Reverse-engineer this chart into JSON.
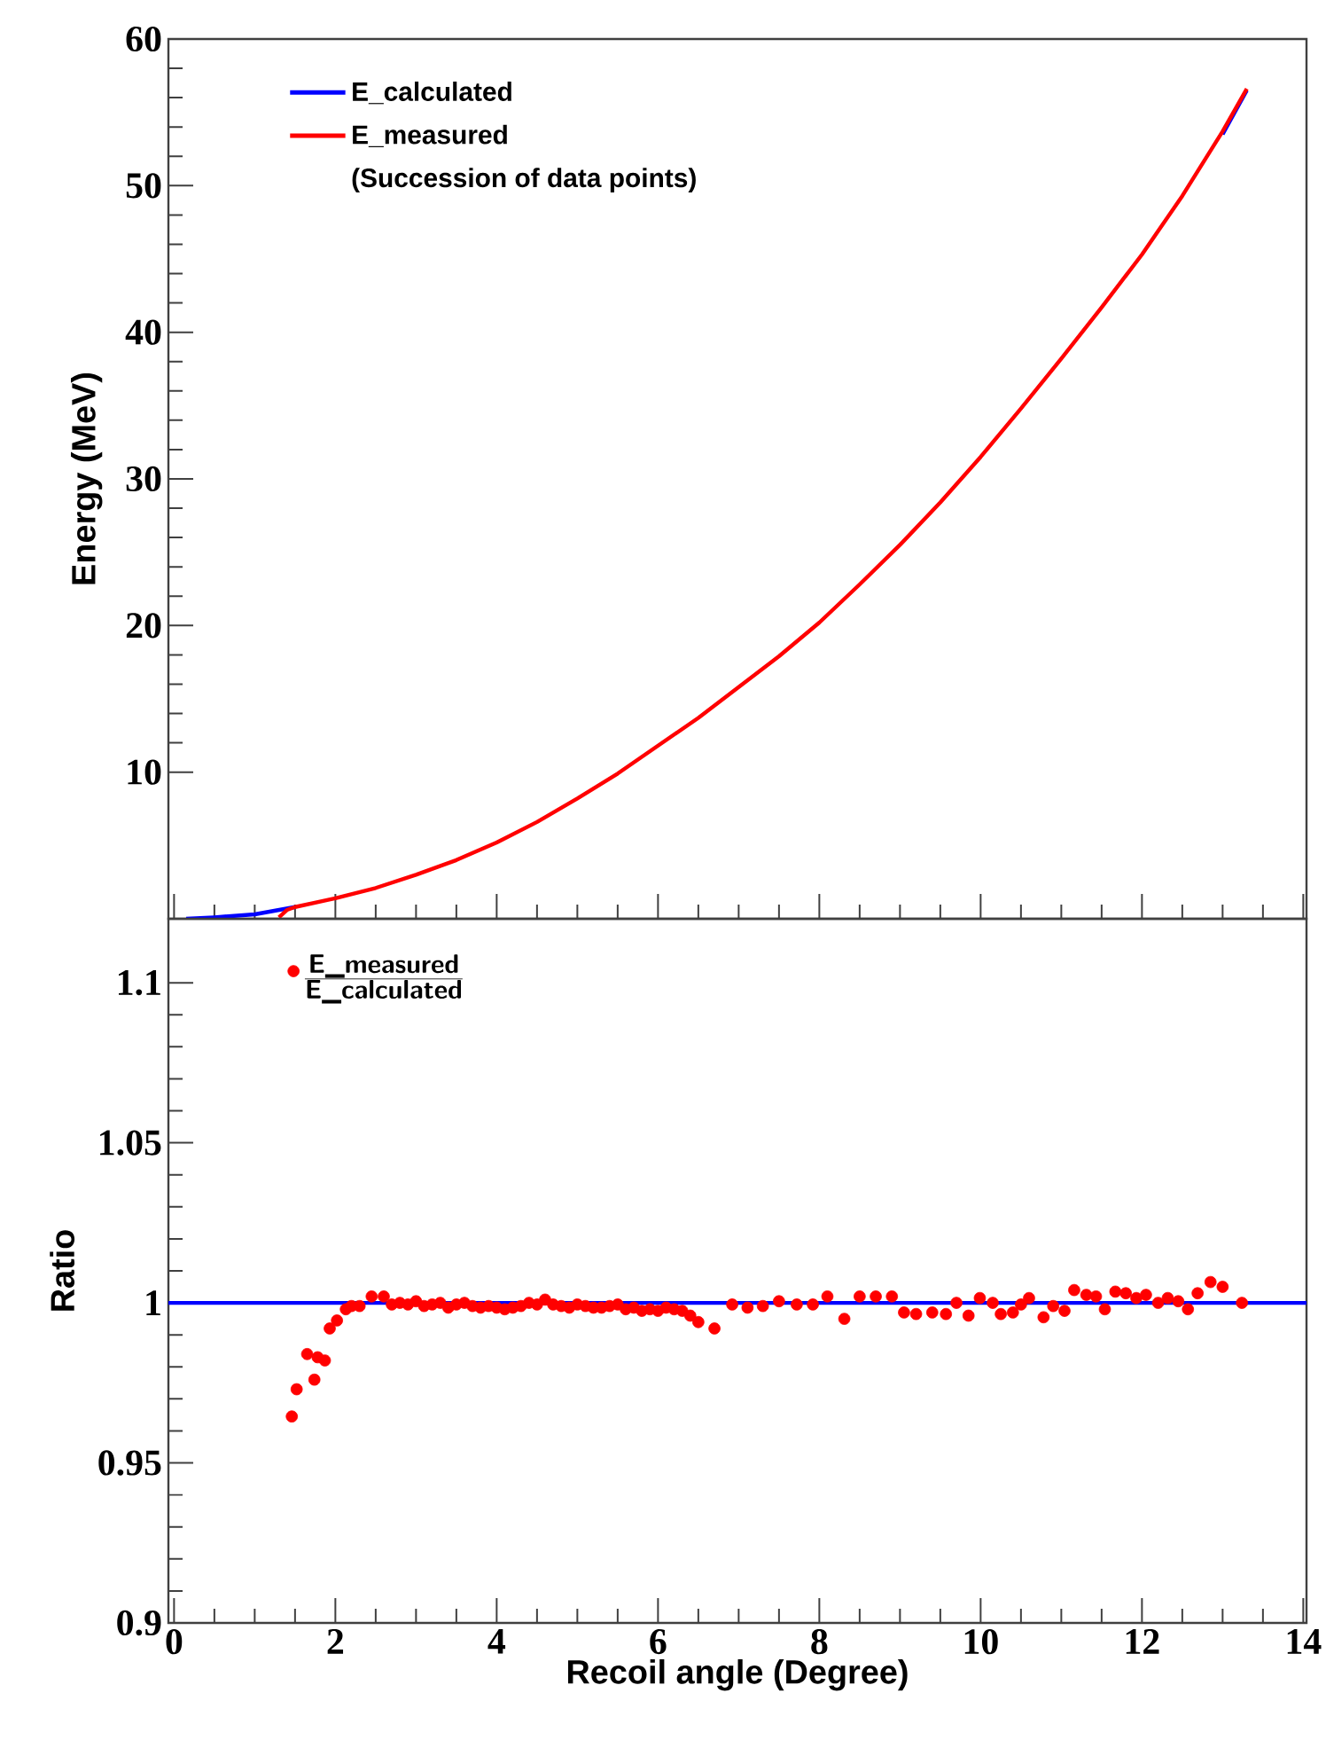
{
  "chart_data": [
    {
      "type": "line",
      "ylabel": "Energy (MeV)",
      "xlim": [
        -0.07,
        14.04
      ],
      "ylim": [
        0,
        60
      ],
      "xticks": [
        0,
        2,
        4,
        6,
        8,
        10,
        12,
        14
      ],
      "yticks": [
        10,
        20,
        30,
        40,
        50,
        60
      ],
      "tick_labels": "y",
      "legend": "top left",
      "annotations": [
        "(Succession of data points)"
      ],
      "series": [
        {
          "name": "E_calculated",
          "color": "#0000ff",
          "x": [
            0.15,
            0.5,
            1,
            1.5,
            2,
            2.5,
            3,
            3.5,
            4,
            4.5,
            5,
            5.5,
            6,
            6.5,
            7,
            7.5,
            8,
            8.5,
            9,
            9.5,
            10,
            10.5,
            11,
            11.5,
            12,
            12.5,
            13,
            13.3
          ],
          "values": [
            0.0,
            0.1,
            0.3,
            0.8,
            null,
            null,
            null,
            null,
            null,
            null,
            null,
            null,
            null,
            null,
            null,
            null,
            null,
            null,
            null,
            null,
            null,
            null,
            null,
            null,
            null,
            null,
            53.5,
            56.5
          ]
        },
        {
          "name": "E_measured",
          "color": "#ff0000",
          "x": [
            1.3,
            1.4,
            1.5,
            2,
            2.5,
            3,
            3.5,
            4,
            4.5,
            5,
            5.5,
            6,
            6.5,
            7,
            7.5,
            8,
            8.5,
            9,
            9.5,
            10,
            10.5,
            11,
            11.5,
            12,
            12.5,
            13,
            13.3
          ],
          "values": [
            0.1,
            0.6,
            0.8,
            1.4,
            2.1,
            3.0,
            4.0,
            5.2,
            6.6,
            8.2,
            9.9,
            11.8,
            13.7,
            15.8,
            17.9,
            20.2,
            22.8,
            25.5,
            28.4,
            31.5,
            34.8,
            38.2,
            41.7,
            45.3,
            49.3,
            53.7,
            56.6
          ]
        }
      ]
    },
    {
      "type": "scatter",
      "xlabel": "Recoil angle (Degree)",
      "ylabel": "Ratio",
      "xlim": [
        -0.07,
        14.04
      ],
      "ylim": [
        0.9,
        1.12
      ],
      "xticks": [
        0,
        2,
        4,
        6,
        8,
        10,
        12,
        14
      ],
      "yticks": [
        0.9,
        0.95,
        1,
        {
          "value": 1.05,
          "label": "1.05"
        },
        1.1
      ],
      "legend": "top left",
      "marker": "circle",
      "ref_lines": [
        {
          "axis": "y",
          "value": 1,
          "color": "#0000ff"
        }
      ],
      "series": [
        {
          "name": "\\frac{\\textsf{\\textbf{E\\_measured}}}{\\textsf{\\textbf{E\\_calculated}}}",
          "color": "#ff0000",
          "x": [
            1.46,
            1.52,
            1.65,
            1.74,
            1.78,
            1.87,
            1.93,
            2.02,
            2.13,
            2.2,
            2.3,
            2.45,
            2.6,
            2.7,
            2.8,
            2.9,
            3.0,
            3.1,
            3.2,
            3.3,
            3.4,
            3.5,
            3.6,
            3.7,
            3.8,
            3.9,
            4.0,
            4.1,
            4.2,
            4.3,
            4.4,
            4.5,
            4.6,
            4.7,
            4.8,
            4.9,
            5.0,
            5.1,
            5.2,
            5.3,
            5.4,
            5.5,
            5.6,
            5.7,
            5.8,
            5.9,
            6.0,
            6.1,
            6.2,
            6.3,
            6.4,
            6.5,
            6.7,
            6.92,
            7.11,
            7.3,
            7.5,
            7.72,
            7.92,
            8.1,
            8.31,
            8.5,
            8.7,
            8.9,
            9.05,
            9.2,
            9.4,
            9.57,
            9.7,
            9.85,
            9.99,
            10.15,
            10.25,
            10.4,
            10.5,
            10.6,
            10.78,
            10.9,
            11.04,
            11.16,
            11.31,
            11.43,
            11.54,
            11.67,
            11.8,
            11.93,
            12.05,
            12.2,
            12.32,
            12.45,
            12.57,
            12.69,
            12.85,
            13.0,
            13.24
          ],
          "values": [
            0.9645,
            0.973,
            0.984,
            0.976,
            0.983,
            0.982,
            0.992,
            0.9945,
            0.998,
            0.999,
            0.999,
            1.002,
            1.002,
            0.9995,
            1.0,
            0.9995,
            1.0005,
            0.999,
            0.9995,
            1.0,
            0.9985,
            0.9995,
            1.0,
            0.999,
            0.9985,
            0.999,
            0.9985,
            0.998,
            0.9985,
            0.999,
            1.0,
            0.9995,
            1.001,
            0.9995,
            0.999,
            0.9985,
            0.9995,
            0.999,
            0.9985,
            0.9985,
            0.999,
            0.9995,
            0.998,
            0.9985,
            0.9975,
            0.998,
            0.9975,
            0.9985,
            0.998,
            0.9975,
            0.996,
            0.994,
            0.992,
            0.9995,
            0.9985,
            0.999,
            1.0005,
            0.9995,
            0.9995,
            1.002,
            0.995,
            1.002,
            1.002,
            1.002,
            0.997,
            0.9965,
            0.997,
            0.9965,
            1.0,
            0.996,
            1.0015,
            1.0,
            0.9965,
            0.997,
            0.9995,
            1.0015,
            0.9955,
            0.999,
            0.9975,
            1.004,
            1.0025,
            1.002,
            0.998,
            1.0035,
            1.003,
            1.0015,
            1.0025,
            1.0,
            1.0015,
            1.0005,
            0.998,
            1.003,
            1.0065,
            1.005,
            1.0
          ]
        }
      ]
    }
  ]
}
